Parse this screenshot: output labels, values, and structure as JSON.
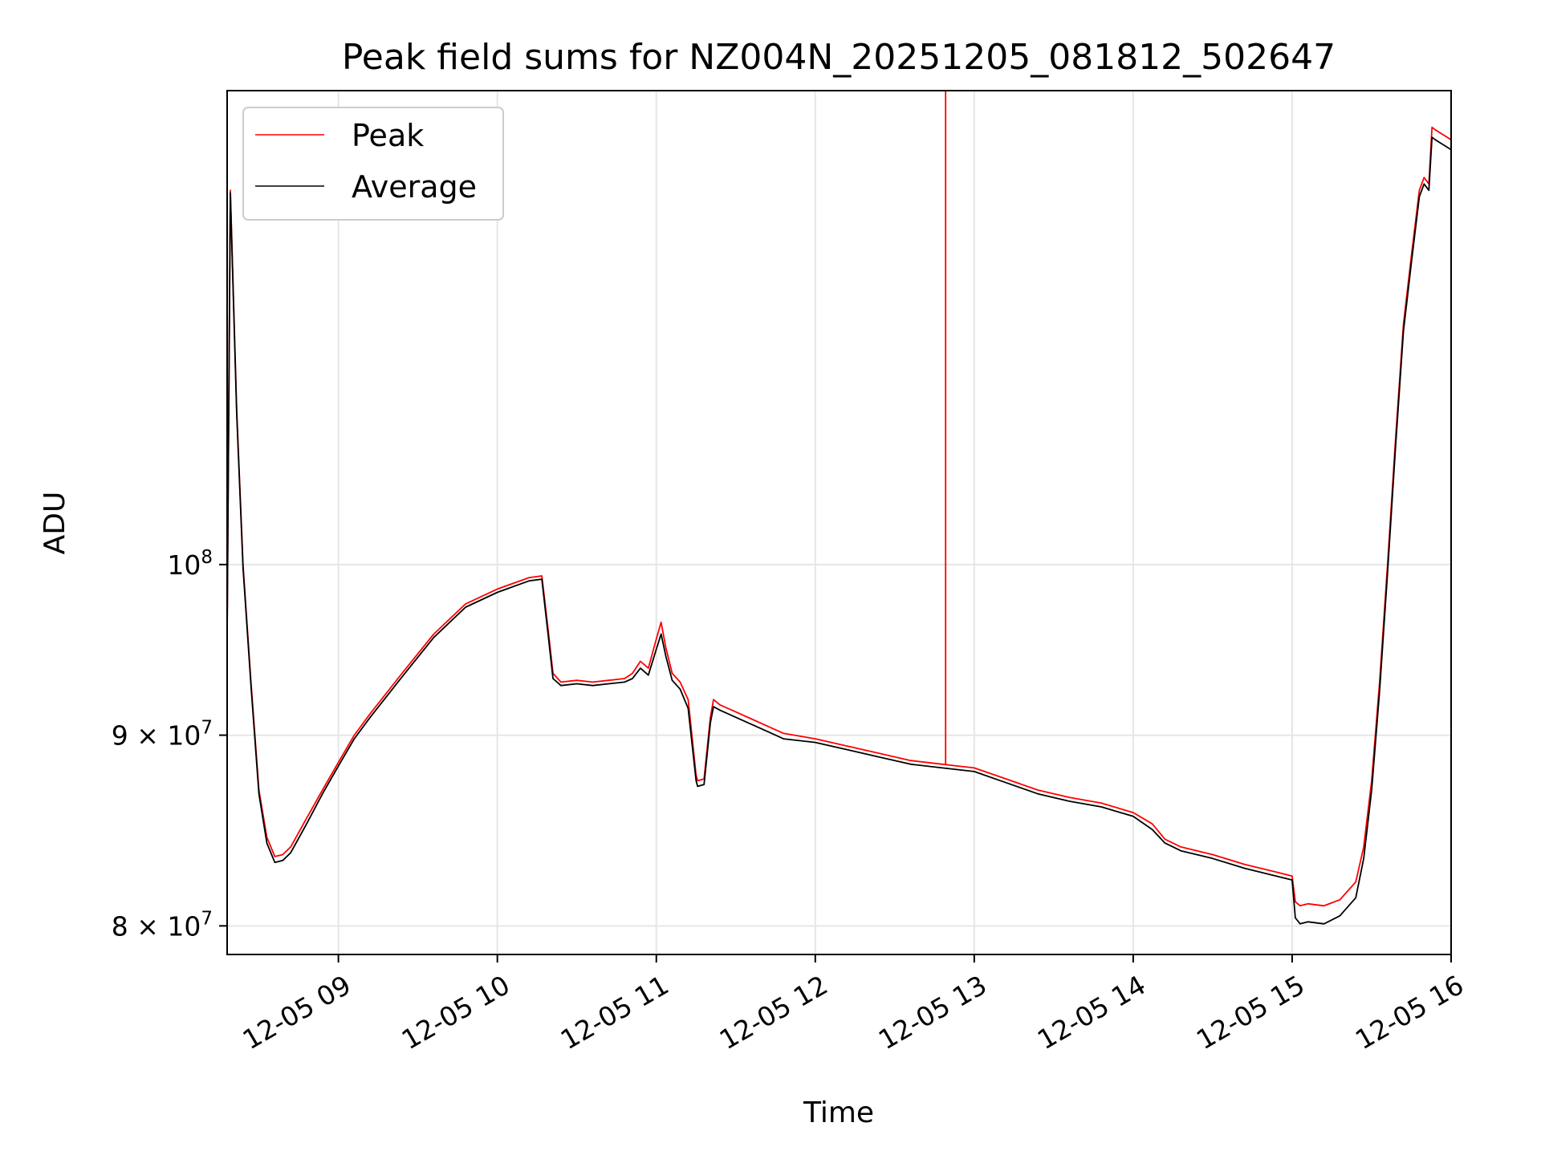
{
  "chart_data": {
    "type": "line",
    "title": "Peak field sums for NZ004N_20251205_081812_502647",
    "xlabel": "Time",
    "ylabel": "ADU",
    "yscale": "log",
    "grid": true,
    "legend_position": "top-left",
    "xlim": [
      8.3,
      16.0
    ],
    "ylim": [
      78600000,
      134000000
    ],
    "x_ticks": [
      {
        "value": 9,
        "label": "12-05 09"
      },
      {
        "value": 10,
        "label": "12-05 10"
      },
      {
        "value": 11,
        "label": "12-05 11"
      },
      {
        "value": 12,
        "label": "12-05 12"
      },
      {
        "value": 13,
        "label": "12-05 13"
      },
      {
        "value": 14,
        "label": "12-05 14"
      },
      {
        "value": 15,
        "label": "12-05 15"
      },
      {
        "value": 16,
        "label": "12-05 16"
      }
    ],
    "y_ticks": [
      {
        "value": 80000000,
        "label_base": "8 × 10",
        "label_exp": "7"
      },
      {
        "value": 90000000,
        "label_base": "9 × 10",
        "label_exp": "7"
      },
      {
        "value": 100000000,
        "label_base": "10",
        "label_exp": "8"
      }
    ],
    "series": [
      {
        "name": "Peak",
        "color": "#ff0000",
        "x": [
          8.3,
          8.32,
          8.36,
          8.4,
          8.45,
          8.5,
          8.55,
          8.6,
          8.65,
          8.7,
          8.8,
          8.9,
          9.0,
          9.1,
          9.2,
          9.4,
          9.6,
          9.8,
          10.0,
          10.2,
          10.28,
          10.32,
          10.35,
          10.4,
          10.5,
          10.6,
          10.7,
          10.8,
          10.85,
          10.9,
          10.95,
          11.0,
          11.03,
          11.06,
          11.1,
          11.15,
          11.2,
          11.25,
          11.26,
          11.3,
          11.34,
          11.36,
          11.4,
          11.5,
          11.6,
          11.7,
          11.8,
          12.0,
          12.2,
          12.4,
          12.6,
          12.8,
          12.9,
          13.0,
          13.2,
          13.4,
          13.6,
          13.8,
          14.0,
          14.12,
          14.2,
          14.3,
          14.5,
          14.7,
          14.9,
          15.0,
          15.02,
          15.05,
          15.1,
          15.2,
          15.3,
          15.4,
          15.45,
          15.5,
          15.55,
          15.6,
          15.65,
          15.7,
          15.75,
          15.8,
          15.83,
          15.86,
          15.88,
          15.9,
          15.95,
          16.0
        ],
        "values": [
          96000000,
          126000000,
          110000000,
          100000000,
          93000000,
          87000000,
          84500000,
          83500000,
          83600000,
          84000000,
          85500000,
          87000000,
          88500000,
          90000000,
          91200000,
          93500000,
          95800000,
          97600000,
          98500000,
          99200000,
          99300000,
          96000000,
          93500000,
          93000000,
          93100000,
          93000000,
          93100000,
          93200000,
          93500000,
          94200000,
          93800000,
          95500000,
          96500000,
          95000000,
          93500000,
          93000000,
          92000000,
          87800000,
          87500000,
          87600000,
          91000000,
          92000000,
          91700000,
          91300000,
          90900000,
          90500000,
          90100000,
          89800000,
          89400000,
          89000000,
          88600000,
          88400000,
          88300000,
          88200000,
          87600000,
          87000000,
          86600000,
          86300000,
          85800000,
          85200000,
          84400000,
          84000000,
          83600000,
          83100000,
          82700000,
          82500000,
          81200000,
          81000000,
          81100000,
          81000000,
          81300000,
          82200000,
          84000000,
          87500000,
          93000000,
          100000000,
          108000000,
          116000000,
          121000000,
          126000000,
          127000000,
          126500000,
          131000000,
          130800000,
          130400000,
          130000000
        ]
      },
      {
        "name": "Average",
        "color": "#000000",
        "x": [
          8.3,
          8.32,
          8.36,
          8.4,
          8.45,
          8.5,
          8.55,
          8.6,
          8.65,
          8.7,
          8.8,
          8.9,
          9.0,
          9.1,
          9.2,
          9.4,
          9.6,
          9.8,
          10.0,
          10.2,
          10.28,
          10.32,
          10.35,
          10.4,
          10.5,
          10.6,
          10.7,
          10.8,
          10.85,
          10.9,
          10.95,
          11.0,
          11.03,
          11.06,
          11.1,
          11.15,
          11.2,
          11.25,
          11.26,
          11.3,
          11.34,
          11.36,
          11.4,
          11.5,
          11.6,
          11.7,
          11.8,
          12.0,
          12.2,
          12.4,
          12.6,
          12.8,
          12.9,
          13.0,
          13.2,
          13.4,
          13.6,
          13.8,
          14.0,
          14.12,
          14.2,
          14.3,
          14.5,
          14.7,
          14.9,
          15.0,
          15.02,
          15.05,
          15.1,
          15.2,
          15.3,
          15.4,
          15.45,
          15.5,
          15.55,
          15.6,
          15.65,
          15.7,
          15.75,
          15.8,
          15.83,
          15.86,
          15.88,
          15.9,
          15.95,
          16.0
        ],
        "values": [
          95800000,
          125800000,
          109800000,
          99800000,
          92800000,
          86800000,
          84200000,
          83200000,
          83300000,
          83700000,
          85200000,
          86800000,
          88300000,
          89800000,
          91000000,
          93300000,
          95600000,
          97400000,
          98300000,
          99000000,
          99100000,
          95700000,
          93200000,
          92800000,
          92900000,
          92800000,
          92900000,
          93000000,
          93200000,
          93800000,
          93400000,
          94900000,
          95800000,
          94500000,
          93100000,
          92600000,
          91500000,
          87500000,
          87200000,
          87300000,
          90700000,
          91600000,
          91400000,
          91000000,
          90600000,
          90200000,
          89800000,
          89600000,
          89200000,
          88800000,
          88400000,
          88200000,
          88100000,
          88000000,
          87400000,
          86800000,
          86400000,
          86100000,
          85600000,
          84900000,
          84200000,
          83800000,
          83400000,
          82900000,
          82500000,
          82300000,
          80400000,
          80100000,
          80200000,
          80100000,
          80500000,
          81400000,
          83400000,
          87000000,
          92500000,
          99500000,
          107500000,
          115500000,
          120500000,
          125500000,
          126500000,
          126000000,
          130200000,
          130000000,
          129600000,
          129200000
        ]
      }
    ],
    "annotations": [
      {
        "x": 12.82,
        "value": 134000000,
        "series": "Peak",
        "note": "vertical spike"
      }
    ]
  }
}
